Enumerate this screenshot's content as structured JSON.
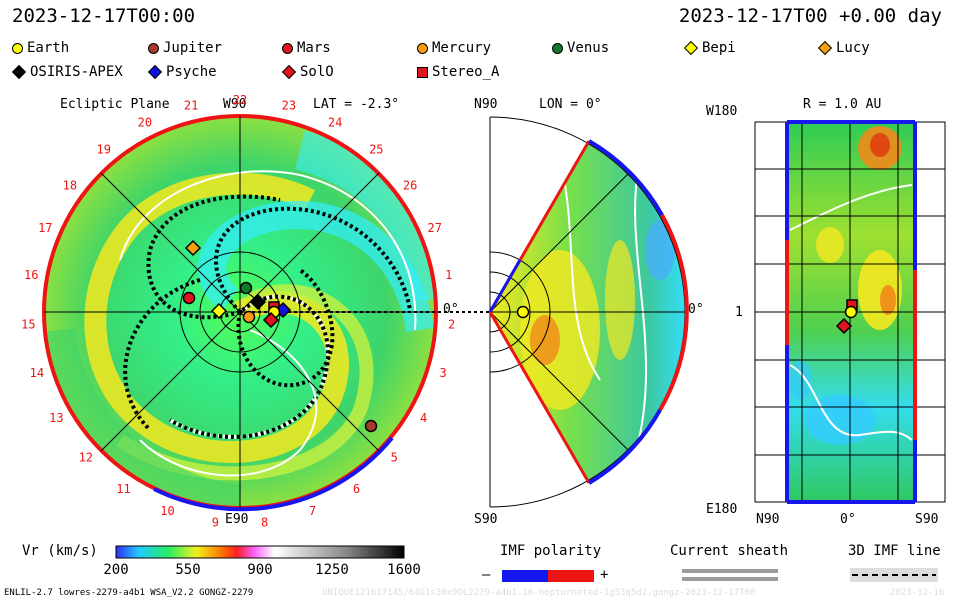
{
  "header": {
    "left_time": "2023-12-17T00:00",
    "right_time": "2023-12-17T00 +0.00 day"
  },
  "legend": [
    {
      "name": "Earth",
      "shape": "circle",
      "color": "#ffff00"
    },
    {
      "name": "Jupiter",
      "shape": "circle",
      "color": "#a33a2a"
    },
    {
      "name": "Mars",
      "shape": "circle",
      "color": "#e0141e"
    },
    {
      "name": "Mercury",
      "shape": "circle",
      "color": "#ff9a10"
    },
    {
      "name": "Venus",
      "shape": "circle",
      "color": "#0e7a2a"
    },
    {
      "name": "Bepi",
      "shape": "diamond",
      "color": "#ffff00"
    },
    {
      "name": "Lucy",
      "shape": "diamond",
      "color": "#f4a010"
    },
    {
      "name": "OSIRIS-APEX",
      "shape": "diamond",
      "color": "#000000"
    },
    {
      "name": "Psyche",
      "shape": "diamond",
      "color": "#1010e0"
    },
    {
      "name": "SolO",
      "shape": "diamond",
      "color": "#e0141e"
    },
    {
      "name": "Stereo_A",
      "shape": "square",
      "color": "#e0141e"
    }
  ],
  "ecliptic": {
    "title": "Ecliptic Plane",
    "top_label": "W90",
    "bottom_label": "E90",
    "lat_label": "LAT = -2.3°",
    "right_angle_label": "0°",
    "carrington_hours": [
      "1",
      "2",
      "3",
      "4",
      "5",
      "6",
      "7",
      "8",
      "9",
      "10",
      "11",
      "12",
      "13",
      "14",
      "15",
      "16",
      "17",
      "18",
      "19",
      "20",
      "21",
      "22",
      "23",
      "24",
      "25",
      "26",
      "27"
    ]
  },
  "meridional": {
    "top_label": "N90",
    "bottom_label": "S90",
    "lon_label": "LON = 0°",
    "right_angle_label": "0°"
  },
  "r_panel": {
    "title": "R = 1.0 AU",
    "left_top": "W180",
    "left_mid": "1",
    "left_bottom": "E180",
    "bottom_left": "N90",
    "bottom_mid": "0°",
    "bottom_right": "S90"
  },
  "colorbar": {
    "label": "Vr (km/s)",
    "ticks": [
      "200",
      "550",
      "900",
      "1250",
      "1600"
    ],
    "min": 200,
    "max": 1600
  },
  "imf": {
    "label": "IMF polarity",
    "minus": "–",
    "plus": "+"
  },
  "sheath": {
    "label": "Current sheath"
  },
  "imfline": {
    "label": "3D IMF line"
  },
  "footer": {
    "model": "ENLIL-2.7 lowres-2279-a4b1 WSA_V2.2 GONGZ-2279",
    "run_id": "UNIQUE121617145/64G1s30x9OL2279-a4b1.16-nopturnnted-1g53q5d2.gongz-2023-12-17T00",
    "date_tail": "2023-12-16"
  },
  "colors": {
    "cyan": "#33eeff",
    "green": "#28c83c",
    "yellow": "#f5ee10",
    "orange": "#f08a1a",
    "blue_edge": "#1616ee",
    "red_edge": "#ee1414"
  }
}
